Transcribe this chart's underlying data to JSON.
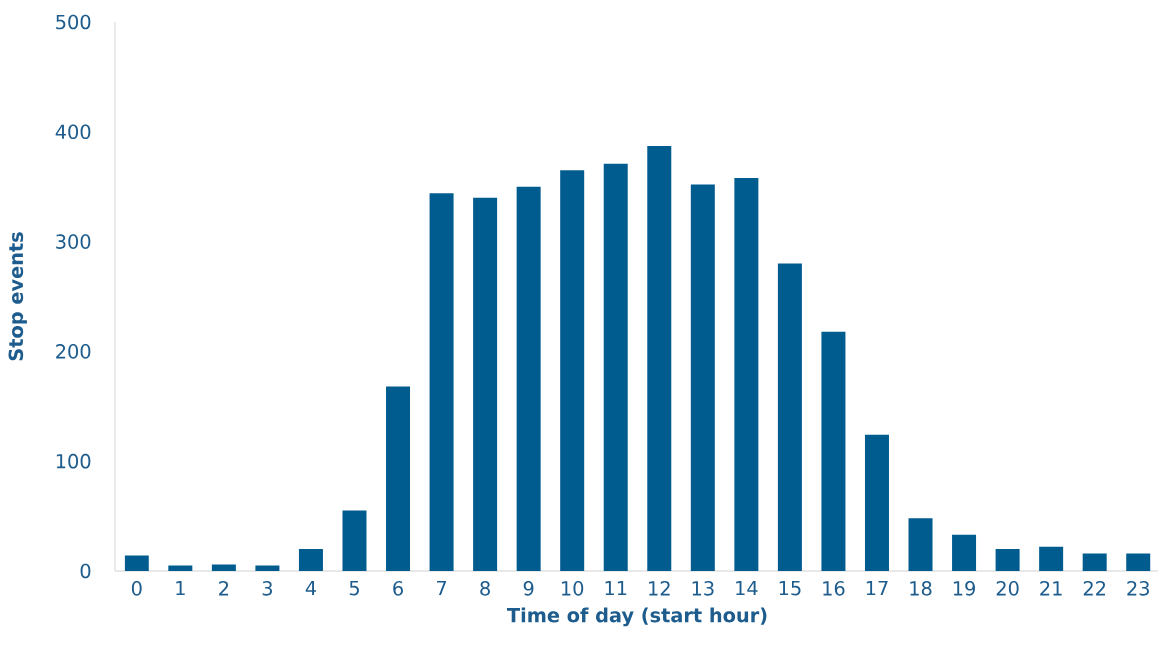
{
  "chart_data": {
    "type": "bar",
    "xlabel": "Time of day (start hour)",
    "ylabel": "Stop events",
    "categories": [
      "0",
      "1",
      "2",
      "3",
      "4",
      "5",
      "6",
      "7",
      "8",
      "9",
      "10",
      "11",
      "12",
      "13",
      "14",
      "15",
      "16",
      "17",
      "18",
      "19",
      "20",
      "21",
      "22",
      "23"
    ],
    "values": [
      14,
      5,
      6,
      5,
      20,
      55,
      168,
      344,
      340,
      350,
      365,
      371,
      387,
      352,
      358,
      280,
      218,
      124,
      48,
      33,
      20,
      22,
      16,
      16
    ],
    "color": "#005b8f",
    "ylim": [
      0,
      500
    ],
    "yticks": [
      0,
      100,
      200,
      300,
      400,
      500
    ],
    "grid": false
  }
}
